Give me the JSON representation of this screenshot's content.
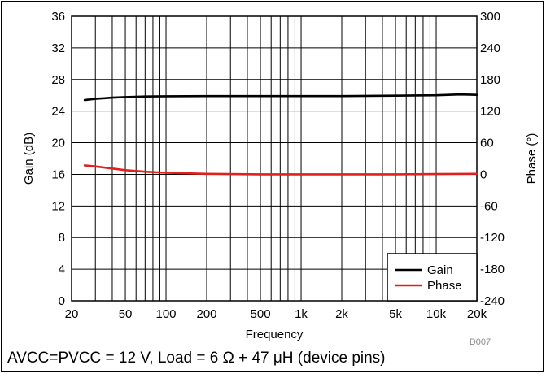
{
  "chart_data": {
    "type": "line",
    "xlabel": "Frequency",
    "ylabel": "Gain (dB)",
    "y2label": "Phase (°)",
    "x_scale": "log",
    "xlim": [
      20,
      20000
    ],
    "ylim": [
      0,
      36
    ],
    "y2lim": [
      -240,
      300
    ],
    "x_ticks": [
      {
        "value": 20,
        "label": "20"
      },
      {
        "value": 50,
        "label": "50"
      },
      {
        "value": 100,
        "label": "100"
      },
      {
        "value": 200,
        "label": "200"
      },
      {
        "value": 500,
        "label": "500"
      },
      {
        "value": 1000,
        "label": "1k"
      },
      {
        "value": 2000,
        "label": "2k"
      },
      {
        "value": 5000,
        "label": "5k"
      },
      {
        "value": 10000,
        "label": "10k"
      },
      {
        "value": 20000,
        "label": "20k"
      }
    ],
    "y_ticks": [
      "0",
      "4",
      "8",
      "12",
      "16",
      "20",
      "24",
      "28",
      "32",
      "36"
    ],
    "y2_ticks": [
      "-240",
      "-180",
      "-120",
      "-60",
      "0",
      "60",
      "120",
      "180",
      "240",
      "300"
    ],
    "grid": true,
    "legend": "bottom-right",
    "code": "D007",
    "series": [
      {
        "name": "Gain",
        "axis": "left",
        "color": "#000000",
        "x": [
          25,
          30,
          40,
          50,
          70,
          100,
          200,
          500,
          1000,
          2000,
          5000,
          10000,
          15000,
          20000
        ],
        "values": [
          25.4,
          25.55,
          25.7,
          25.78,
          25.85,
          25.88,
          25.9,
          25.9,
          25.9,
          25.9,
          25.95,
          26.0,
          26.1,
          26.05
        ]
      },
      {
        "name": "Phase",
        "axis": "right",
        "color": "#e0201c",
        "x": [
          25,
          30,
          40,
          50,
          70,
          100,
          200,
          500,
          1000,
          2000,
          5000,
          10000,
          20000
        ],
        "values": [
          17,
          15,
          11,
          8,
          5,
          3,
          1,
          0,
          0,
          0,
          0,
          0.5,
          1
        ]
      }
    ]
  },
  "caption": "AVCC=PVCC = 12 V, Load = 6 Ω + 47 μH (device pins)"
}
